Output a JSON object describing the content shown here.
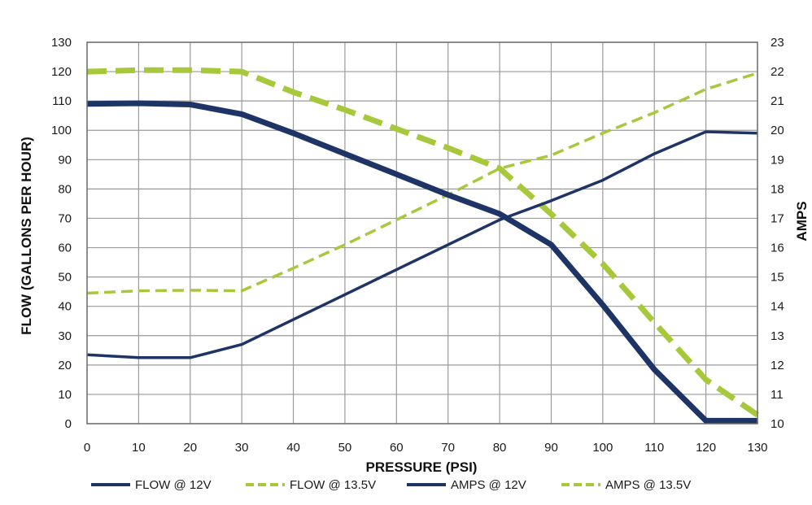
{
  "chart_data": {
    "type": "line",
    "title": "",
    "xlabel": "PRESSURE (PSI)",
    "ylabel": "FLOW (GALLONS PER HOUR)",
    "y2label": "AMPS",
    "x": [
      0,
      10,
      20,
      30,
      40,
      50,
      60,
      70,
      80,
      90,
      100,
      110,
      120,
      130
    ],
    "xlim": [
      0,
      130
    ],
    "ylim": [
      0,
      130
    ],
    "y2lim": [
      10,
      23
    ],
    "x_ticks": [
      "0",
      "10",
      "20",
      "30",
      "40",
      "50",
      "60",
      "70",
      "80",
      "90",
      "100",
      "110",
      "120",
      "130"
    ],
    "y_ticks": [
      "0",
      "10",
      "20",
      "30",
      "40",
      "50",
      "60",
      "70",
      "80",
      "90",
      "100",
      "110",
      "120",
      "130"
    ],
    "y2_ticks": [
      "10",
      "11",
      "12",
      "13",
      "14",
      "15",
      "16",
      "17",
      "18",
      "19",
      "20",
      "21",
      "22",
      "23"
    ],
    "grid": true,
    "legend_position": "bottom",
    "colors": {
      "navy": "#1f3466",
      "lime": "#a8c83c"
    },
    "series": [
      {
        "name": "FLOW @ 12V",
        "axis": "left",
        "color": "#1f3466",
        "style": "solid",
        "weight": "thick",
        "values": [
          109,
          109.2,
          108.8,
          105.5,
          99,
          92,
          85,
          78,
          71.5,
          61,
          40.5,
          18.5,
          1,
          1
        ]
      },
      {
        "name": "FLOW @ 13.5V",
        "axis": "left",
        "color": "#a8c83c",
        "style": "dashed",
        "weight": "thin",
        "values": [
          44.5,
          45.3,
          45.5,
          45.3,
          53,
          61,
          69.5,
          78,
          87,
          91.5,
          99,
          106,
          114,
          119.5
        ]
      },
      {
        "name": "AMPS @ 12V",
        "axis": "right",
        "color": "#1f3466",
        "style": "solid",
        "weight": "thin",
        "values": [
          12.35,
          12.25,
          12.25,
          12.7,
          13.55,
          14.4,
          15.25,
          16.1,
          16.95,
          17.6,
          18.3,
          19.2,
          19.95,
          19.9
        ]
      },
      {
        "name": "AMPS @ 13.5V",
        "axis": "right",
        "color": "#a8c83c",
        "style": "dashed",
        "weight": "thick",
        "values": [
          22,
          22.05,
          22.05,
          22,
          21.3,
          20.7,
          20.05,
          19.4,
          18.7,
          17.15,
          15.45,
          13.45,
          11.5,
          10.3
        ]
      }
    ]
  }
}
